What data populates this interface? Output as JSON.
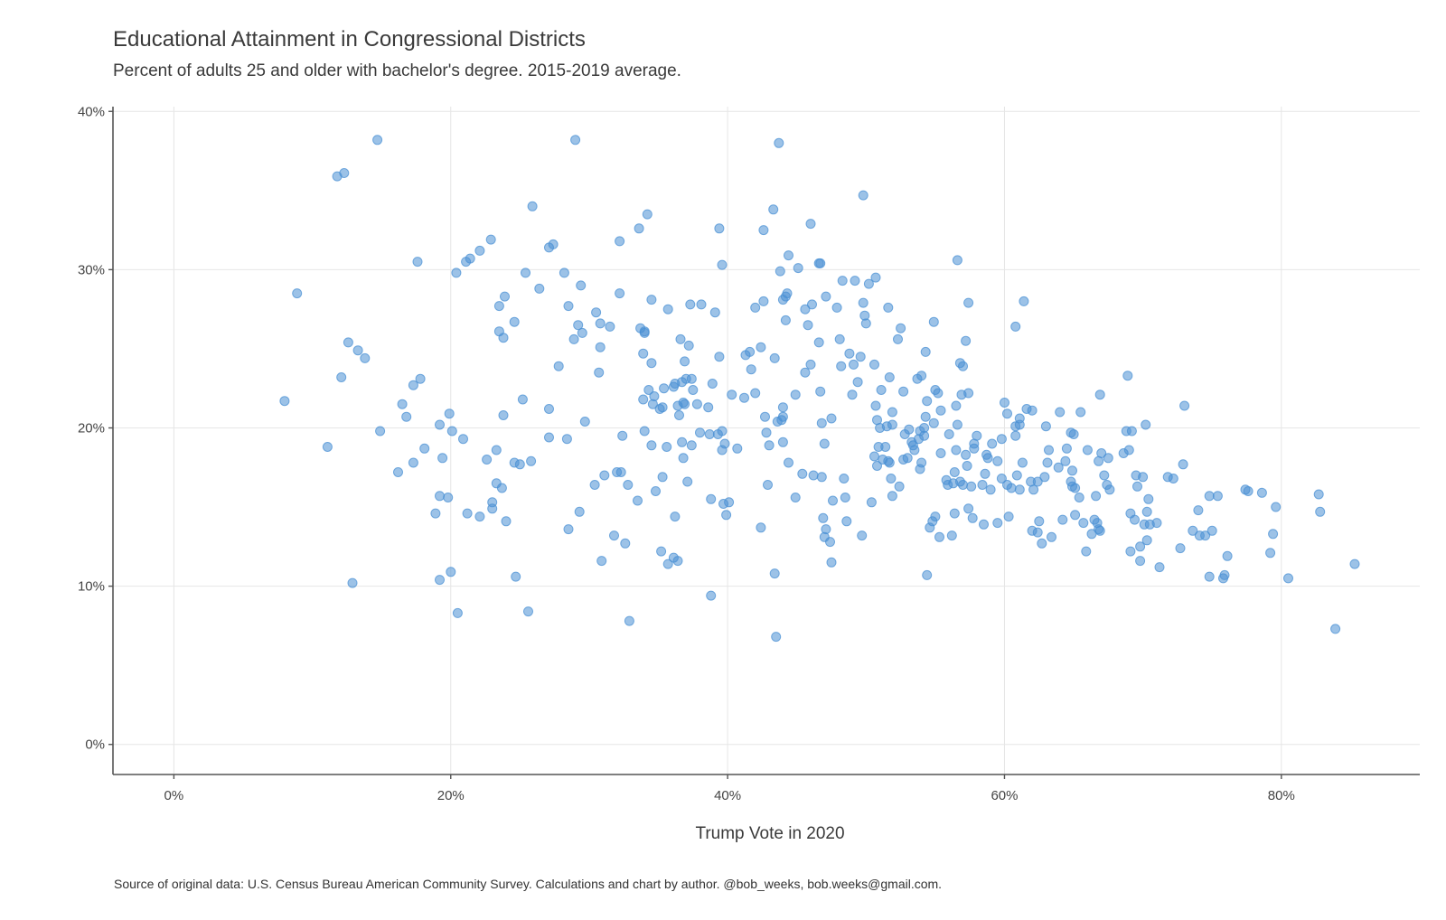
{
  "chart_data": {
    "type": "scatter",
    "title": "Educational Attainment in Congressional Districts",
    "subtitle": "Percent of adults 25 and older with bachelor's degree. 2015-2019 average.",
    "xlabel": "Trump Vote in 2020",
    "ylabel": "",
    "source": "Source of original data: U.S. Census Bureau American Community Survey. Calculations and chart by author. @bob_weeks, bob.weeks@gmail.com.",
    "xlim": [
      -4.4,
      90
    ],
    "ylim": [
      -1.9,
      40.3
    ],
    "x_ticks": [
      0,
      20,
      40,
      60,
      80
    ],
    "x_tick_labels": [
      "0%",
      "20%",
      "40%",
      "60%",
      "80%"
    ],
    "y_ticks": [
      0,
      10,
      20,
      30,
      40
    ],
    "y_tick_labels": [
      "0%",
      "10%",
      "20%",
      "30%",
      "40%"
    ],
    "grid": true,
    "legend": "none",
    "point_color": "#4a90d4",
    "points": [
      [
        8.0,
        21.7
      ],
      [
        8.9,
        28.5
      ],
      [
        11.1,
        18.8
      ],
      [
        11.8,
        35.9
      ],
      [
        12.1,
        23.2
      ],
      [
        12.3,
        36.1
      ],
      [
        12.6,
        25.4
      ],
      [
        12.9,
        10.2
      ],
      [
        13.3,
        24.9
      ],
      [
        13.8,
        24.4
      ],
      [
        14.7,
        38.2
      ],
      [
        14.9,
        19.8
      ],
      [
        16.2,
        17.2
      ],
      [
        16.5,
        21.5
      ],
      [
        16.8,
        20.7
      ],
      [
        17.3,
        17.8
      ],
      [
        17.3,
        22.7
      ],
      [
        17.6,
        30.5
      ],
      [
        17.8,
        23.1
      ],
      [
        18.1,
        18.7
      ],
      [
        18.9,
        14.6
      ],
      [
        19.2,
        10.4
      ],
      [
        19.2,
        15.7
      ],
      [
        19.2,
        20.2
      ],
      [
        19.4,
        18.1
      ],
      [
        19.8,
        15.6
      ],
      [
        19.9,
        20.9
      ],
      [
        20.0,
        10.9
      ],
      [
        20.1,
        19.8
      ],
      [
        20.4,
        29.8
      ],
      [
        20.5,
        8.3
      ],
      [
        20.9,
        19.3
      ],
      [
        21.1,
        30.5
      ],
      [
        21.2,
        14.6
      ],
      [
        21.4,
        30.7
      ],
      [
        22.1,
        31.2
      ],
      [
        22.1,
        14.4
      ],
      [
        22.6,
        18.0
      ],
      [
        22.9,
        31.9
      ],
      [
        23.0,
        15.3
      ],
      [
        23.0,
        14.9
      ],
      [
        23.3,
        16.5
      ],
      [
        23.3,
        18.6
      ],
      [
        23.5,
        27.7
      ],
      [
        23.5,
        26.1
      ],
      [
        23.7,
        16.2
      ],
      [
        23.8,
        20.8
      ],
      [
        23.8,
        25.7
      ],
      [
        23.9,
        28.3
      ],
      [
        24.0,
        14.1
      ],
      [
        24.6,
        26.7
      ],
      [
        24.6,
        17.8
      ],
      [
        24.7,
        10.6
      ],
      [
        25.0,
        17.7
      ],
      [
        25.2,
        21.8
      ],
      [
        25.4,
        29.8
      ],
      [
        25.6,
        8.4
      ],
      [
        25.8,
        17.9
      ],
      [
        25.9,
        34.0
      ],
      [
        26.4,
        28.8
      ],
      [
        27.1,
        21.2
      ],
      [
        27.1,
        19.4
      ],
      [
        27.1,
        31.4
      ],
      [
        27.4,
        31.6
      ],
      [
        27.8,
        23.9
      ],
      [
        28.2,
        29.8
      ],
      [
        28.4,
        19.3
      ],
      [
        28.5,
        27.7
      ],
      [
        28.5,
        13.6
      ],
      [
        28.9,
        25.6
      ],
      [
        29.0,
        38.2
      ],
      [
        29.2,
        26.5
      ],
      [
        29.3,
        14.7
      ],
      [
        29.4,
        29.0
      ],
      [
        29.5,
        26.0
      ],
      [
        29.7,
        20.4
      ],
      [
        30.4,
        16.4
      ],
      [
        30.5,
        27.3
      ],
      [
        30.7,
        23.5
      ],
      [
        30.8,
        26.6
      ],
      [
        30.8,
        25.1
      ],
      [
        30.9,
        11.6
      ],
      [
        31.1,
        17.0
      ],
      [
        31.5,
        26.4
      ],
      [
        31.8,
        13.2
      ],
      [
        32.0,
        17.2
      ],
      [
        32.2,
        31.8
      ],
      [
        32.2,
        28.5
      ],
      [
        32.3,
        17.2
      ],
      [
        32.4,
        19.5
      ],
      [
        32.6,
        12.7
      ],
      [
        32.8,
        16.4
      ],
      [
        32.9,
        7.8
      ],
      [
        33.5,
        15.4
      ],
      [
        33.6,
        32.6
      ],
      [
        33.7,
        26.3
      ],
      [
        33.9,
        24.7
      ],
      [
        33.9,
        21.8
      ],
      [
        34.0,
        26.1
      ],
      [
        34.0,
        19.8
      ],
      [
        34.0,
        26.0
      ],
      [
        34.2,
        33.5
      ],
      [
        34.3,
        22.4
      ],
      [
        34.5,
        18.9
      ],
      [
        34.5,
        24.1
      ],
      [
        34.5,
        28.1
      ],
      [
        34.6,
        21.5
      ],
      [
        34.7,
        22.0
      ],
      [
        34.8,
        16.0
      ],
      [
        35.1,
        21.2
      ],
      [
        35.2,
        12.2
      ],
      [
        35.3,
        16.9
      ],
      [
        35.3,
        21.3
      ],
      [
        35.4,
        22.5
      ],
      [
        35.6,
        18.8
      ],
      [
        35.7,
        27.5
      ],
      [
        35.7,
        11.4
      ],
      [
        36.1,
        22.6
      ],
      [
        36.1,
        11.8
      ],
      [
        36.2,
        14.4
      ],
      [
        36.2,
        22.8
      ],
      [
        36.4,
        11.6
      ],
      [
        36.4,
        21.4
      ],
      [
        36.5,
        20.8
      ],
      [
        36.6,
        25.6
      ],
      [
        36.7,
        19.1
      ],
      [
        36.7,
        22.9
      ],
      [
        36.8,
        21.6
      ],
      [
        36.8,
        18.1
      ],
      [
        36.9,
        24.2
      ],
      [
        36.9,
        21.5
      ],
      [
        37.0,
        23.1
      ],
      [
        37.1,
        16.6
      ],
      [
        37.2,
        25.2
      ],
      [
        37.3,
        27.8
      ],
      [
        37.4,
        23.1
      ],
      [
        37.4,
        18.9
      ],
      [
        37.5,
        22.4
      ],
      [
        37.8,
        21.5
      ],
      [
        38.0,
        19.7
      ],
      [
        38.1,
        27.8
      ],
      [
        38.6,
        21.3
      ],
      [
        38.7,
        19.6
      ],
      [
        38.8,
        15.5
      ],
      [
        38.8,
        9.4
      ],
      [
        38.9,
        22.8
      ],
      [
        39.1,
        27.3
      ],
      [
        39.3,
        19.6
      ],
      [
        39.4,
        24.5
      ],
      [
        39.4,
        32.6
      ],
      [
        39.6,
        30.3
      ],
      [
        39.6,
        18.6
      ],
      [
        39.6,
        19.8
      ],
      [
        39.7,
        15.2
      ],
      [
        39.8,
        19.0
      ],
      [
        39.9,
        14.5
      ],
      [
        40.1,
        15.3
      ],
      [
        40.3,
        22.1
      ],
      [
        40.7,
        18.7
      ],
      [
        41.2,
        21.9
      ],
      [
        41.3,
        24.6
      ],
      [
        41.6,
        24.8
      ],
      [
        41.7,
        23.7
      ],
      [
        42.0,
        27.6
      ],
      [
        42.0,
        22.2
      ],
      [
        42.4,
        25.1
      ],
      [
        42.4,
        13.7
      ],
      [
        42.6,
        28.0
      ],
      [
        42.6,
        32.5
      ],
      [
        42.7,
        20.7
      ],
      [
        42.8,
        19.7
      ],
      [
        42.9,
        16.4
      ],
      [
        43.0,
        18.9
      ],
      [
        43.3,
        33.8
      ],
      [
        43.4,
        10.8
      ],
      [
        43.4,
        24.4
      ],
      [
        43.5,
        6.8
      ],
      [
        43.6,
        20.4
      ],
      [
        43.7,
        38.0
      ],
      [
        43.8,
        29.9
      ],
      [
        43.9,
        20.5
      ],
      [
        44.0,
        21.3
      ],
      [
        44.0,
        28.1
      ],
      [
        44.0,
        19.1
      ],
      [
        44.0,
        20.7
      ],
      [
        44.2,
        28.3
      ],
      [
        44.2,
        26.8
      ],
      [
        44.3,
        28.5
      ],
      [
        44.4,
        30.9
      ],
      [
        44.4,
        17.8
      ],
      [
        44.9,
        22.1
      ],
      [
        44.9,
        15.6
      ],
      [
        45.1,
        30.1
      ],
      [
        45.4,
        17.1
      ],
      [
        45.6,
        27.5
      ],
      [
        45.6,
        23.5
      ],
      [
        45.8,
        26.5
      ],
      [
        46.0,
        32.9
      ],
      [
        46.0,
        24.0
      ],
      [
        46.1,
        27.8
      ],
      [
        46.2,
        17.0
      ],
      [
        46.6,
        30.4
      ],
      [
        46.6,
        25.4
      ],
      [
        46.7,
        22.3
      ],
      [
        46.7,
        30.4
      ],
      [
        46.8,
        16.9
      ],
      [
        46.8,
        20.3
      ],
      [
        46.9,
        14.3
      ],
      [
        47.0,
        19.0
      ],
      [
        47.0,
        13.1
      ],
      [
        47.1,
        28.3
      ],
      [
        47.1,
        13.6
      ],
      [
        47.4,
        12.8
      ],
      [
        47.5,
        20.6
      ],
      [
        47.5,
        11.5
      ],
      [
        47.6,
        15.4
      ],
      [
        47.9,
        27.6
      ],
      [
        48.1,
        25.6
      ],
      [
        48.2,
        23.9
      ],
      [
        48.3,
        29.3
      ],
      [
        48.4,
        16.8
      ],
      [
        48.5,
        15.6
      ],
      [
        48.6,
        14.1
      ],
      [
        48.8,
        24.7
      ],
      [
        49.0,
        22.1
      ],
      [
        49.1,
        24.0
      ],
      [
        49.2,
        29.3
      ],
      [
        49.4,
        22.9
      ],
      [
        49.6,
        24.5
      ],
      [
        49.7,
        13.2
      ],
      [
        49.8,
        27.9
      ],
      [
        49.8,
        34.7
      ],
      [
        49.9,
        27.1
      ],
      [
        50.0,
        26.6
      ],
      [
        50.2,
        29.1
      ],
      [
        50.4,
        15.3
      ],
      [
        50.6,
        24.0
      ],
      [
        50.6,
        18.2
      ],
      [
        50.7,
        29.5
      ],
      [
        50.7,
        21.4
      ],
      [
        50.8,
        17.6
      ],
      [
        50.8,
        20.5
      ],
      [
        50.9,
        18.8
      ],
      [
        51.0,
        20.0
      ],
      [
        51.1,
        22.4
      ],
      [
        51.2,
        18.0
      ],
      [
        51.4,
        18.8
      ],
      [
        51.5,
        20.1
      ],
      [
        51.6,
        17.9
      ],
      [
        51.6,
        27.6
      ],
      [
        51.7,
        23.2
      ],
      [
        51.7,
        17.8
      ],
      [
        51.8,
        16.8
      ],
      [
        51.9,
        20.2
      ],
      [
        51.9,
        21.0
      ],
      [
        51.9,
        15.7
      ],
      [
        52.3,
        25.6
      ],
      [
        52.4,
        16.3
      ],
      [
        52.5,
        26.3
      ],
      [
        52.7,
        18.0
      ],
      [
        52.7,
        22.3
      ],
      [
        52.8,
        19.6
      ],
      [
        53.0,
        18.1
      ],
      [
        53.1,
        19.9
      ],
      [
        53.3,
        19.1
      ],
      [
        53.4,
        18.9
      ],
      [
        53.5,
        18.6
      ],
      [
        53.7,
        23.1
      ],
      [
        53.8,
        19.3
      ],
      [
        53.9,
        17.4
      ],
      [
        53.9,
        19.8
      ],
      [
        54.0,
        17.8
      ],
      [
        54.0,
        23.3
      ],
      [
        54.2,
        20.0
      ],
      [
        54.2,
        19.5
      ],
      [
        54.3,
        24.8
      ],
      [
        54.3,
        20.7
      ],
      [
        54.4,
        21.7
      ],
      [
        54.4,
        10.7
      ],
      [
        54.6,
        13.7
      ],
      [
        54.8,
        14.1
      ],
      [
        54.9,
        26.7
      ],
      [
        54.9,
        20.3
      ],
      [
        55.0,
        14.4
      ],
      [
        55.0,
        22.4
      ],
      [
        55.2,
        22.2
      ],
      [
        55.3,
        13.1
      ],
      [
        55.4,
        18.4
      ],
      [
        55.4,
        21.1
      ],
      [
        55.8,
        16.7
      ],
      [
        55.9,
        16.4
      ],
      [
        56.0,
        19.6
      ],
      [
        56.2,
        13.2
      ],
      [
        56.3,
        16.5
      ],
      [
        56.4,
        17.2
      ],
      [
        56.4,
        14.6
      ],
      [
        56.5,
        21.4
      ],
      [
        56.5,
        18.6
      ],
      [
        56.6,
        30.6
      ],
      [
        56.6,
        20.2
      ],
      [
        56.8,
        16.6
      ],
      [
        56.8,
        24.1
      ],
      [
        56.9,
        22.1
      ],
      [
        57.0,
        23.9
      ],
      [
        57.0,
        16.4
      ],
      [
        57.2,
        18.3
      ],
      [
        57.2,
        25.5
      ],
      [
        57.3,
        17.6
      ],
      [
        57.4,
        27.9
      ],
      [
        57.4,
        14.9
      ],
      [
        57.4,
        22.2
      ],
      [
        57.6,
        16.3
      ],
      [
        57.7,
        14.3
      ],
      [
        57.8,
        19.0
      ],
      [
        57.8,
        18.7
      ],
      [
        58.0,
        19.5
      ],
      [
        58.4,
        16.4
      ],
      [
        58.5,
        13.9
      ],
      [
        58.6,
        17.1
      ],
      [
        58.7,
        18.3
      ],
      [
        58.8,
        18.1
      ],
      [
        59.0,
        16.1
      ],
      [
        59.1,
        19.0
      ],
      [
        59.5,
        17.9
      ],
      [
        59.5,
        14.0
      ],
      [
        59.8,
        19.3
      ],
      [
        59.8,
        16.8
      ],
      [
        60.0,
        21.6
      ],
      [
        60.2,
        16.4
      ],
      [
        60.2,
        20.9
      ],
      [
        60.3,
        14.4
      ],
      [
        60.5,
        16.2
      ],
      [
        60.8,
        19.5
      ],
      [
        60.8,
        26.4
      ],
      [
        60.8,
        20.1
      ],
      [
        60.9,
        17.0
      ],
      [
        61.1,
        16.1
      ],
      [
        61.1,
        20.6
      ],
      [
        61.1,
        20.2
      ],
      [
        61.3,
        17.8
      ],
      [
        61.4,
        28.0
      ],
      [
        61.6,
        21.2
      ],
      [
        61.9,
        16.6
      ],
      [
        62.0,
        21.1
      ],
      [
        62.0,
        13.5
      ],
      [
        62.1,
        16.1
      ],
      [
        62.4,
        16.6
      ],
      [
        62.4,
        13.4
      ],
      [
        62.5,
        14.1
      ],
      [
        62.7,
        12.7
      ],
      [
        62.9,
        16.9
      ],
      [
        63.0,
        20.1
      ],
      [
        63.1,
        17.8
      ],
      [
        63.2,
        18.6
      ],
      [
        63.4,
        13.1
      ],
      [
        63.9,
        17.5
      ],
      [
        64.0,
        21.0
      ],
      [
        64.2,
        14.2
      ],
      [
        64.4,
        17.9
      ],
      [
        64.5,
        18.7
      ],
      [
        64.8,
        19.7
      ],
      [
        64.8,
        16.6
      ],
      [
        64.9,
        16.3
      ],
      [
        64.9,
        17.3
      ],
      [
        65.0,
        19.6
      ],
      [
        65.1,
        16.2
      ],
      [
        65.1,
        14.5
      ],
      [
        65.4,
        15.6
      ],
      [
        65.5,
        21.0
      ],
      [
        65.7,
        14.0
      ],
      [
        65.9,
        12.2
      ],
      [
        66.0,
        18.6
      ],
      [
        66.3,
        13.3
      ],
      [
        66.5,
        14.2
      ],
      [
        66.6,
        15.7
      ],
      [
        66.7,
        14.0
      ],
      [
        66.8,
        13.6
      ],
      [
        66.8,
        17.9
      ],
      [
        66.9,
        13.5
      ],
      [
        66.9,
        22.1
      ],
      [
        67.0,
        18.4
      ],
      [
        67.2,
        17.0
      ],
      [
        67.4,
        16.4
      ],
      [
        67.5,
        18.1
      ],
      [
        67.6,
        16.1
      ],
      [
        68.6,
        18.4
      ],
      [
        68.8,
        19.8
      ],
      [
        68.9,
        23.3
      ],
      [
        69.1,
        12.2
      ],
      [
        69.0,
        18.6
      ],
      [
        69.1,
        14.6
      ],
      [
        69.2,
        19.8
      ],
      [
        69.4,
        14.2
      ],
      [
        69.5,
        17.0
      ],
      [
        69.6,
        16.3
      ],
      [
        69.8,
        12.5
      ],
      [
        69.8,
        11.6
      ],
      [
        70.0,
        16.9
      ],
      [
        70.1,
        13.9
      ],
      [
        70.2,
        20.2
      ],
      [
        70.3,
        12.9
      ],
      [
        70.3,
        14.7
      ],
      [
        70.4,
        15.5
      ],
      [
        70.5,
        13.9
      ],
      [
        71.0,
        14.0
      ],
      [
        71.2,
        11.2
      ],
      [
        71.8,
        16.9
      ],
      [
        72.2,
        16.8
      ],
      [
        72.7,
        12.4
      ],
      [
        72.9,
        17.7
      ],
      [
        73.0,
        21.4
      ],
      [
        73.6,
        13.5
      ],
      [
        74.0,
        14.8
      ],
      [
        74.1,
        13.2
      ],
      [
        74.5,
        13.2
      ],
      [
        74.8,
        10.6
      ],
      [
        74.8,
        15.7
      ],
      [
        75.0,
        13.5
      ],
      [
        75.4,
        15.7
      ],
      [
        75.8,
        10.5
      ],
      [
        75.9,
        10.7
      ],
      [
        76.1,
        11.9
      ],
      [
        77.4,
        16.1
      ],
      [
        77.6,
        16.0
      ],
      [
        78.6,
        15.9
      ],
      [
        79.2,
        12.1
      ],
      [
        79.4,
        13.3
      ],
      [
        79.6,
        15.0
      ],
      [
        80.5,
        10.5
      ],
      [
        82.7,
        15.8
      ],
      [
        82.8,
        14.7
      ],
      [
        83.9,
        7.3
      ],
      [
        85.3,
        11.4
      ]
    ]
  }
}
